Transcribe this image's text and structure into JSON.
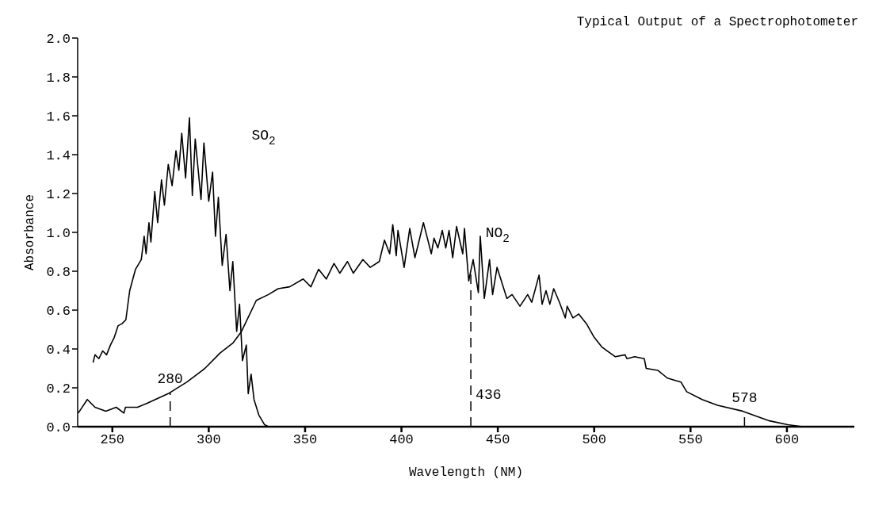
{
  "chart_data": {
    "type": "line",
    "title": "Typical Output of a Spectrophotometer",
    "xlabel": "Wavelength (NM)",
    "ylabel": "Absorbance",
    "xlim": [
      232,
      635
    ],
    "xticks": [
      250,
      300,
      350,
      400,
      450,
      500,
      550,
      600
    ],
    "ylim": [
      0,
      2
    ],
    "yticks": [
      {
        "value": 0,
        "label": "0.0"
      },
      {
        "value": 0.2,
        "label": "0.2"
      },
      {
        "value": 0.4,
        "label": "0.4"
      },
      {
        "value": 0.6,
        "label": "0.6"
      },
      {
        "value": 0.8,
        "label": "0.8"
      },
      {
        "value": 1,
        "label": "1.0"
      },
      {
        "value": 1.2,
        "label": "1.2"
      },
      {
        "value": 1.4,
        "label": "1.4"
      },
      {
        "value": 1.6,
        "label": "1.6"
      },
      {
        "value": 1.8,
        "label": "1.8"
      },
      {
        "value": 2,
        "label": "2.0"
      }
    ],
    "grid": false,
    "legend": false,
    "marker": "none",
    "line_style": "solid",
    "series": [
      {
        "color": "#000000",
        "x": [
          240,
          241,
          243,
          245,
          247,
          249,
          251,
          253,
          255,
          257,
          259,
          262,
          265,
          266.5,
          267.5,
          269,
          270,
          272,
          273.5,
          275.5,
          277,
          279,
          281,
          283,
          284.5,
          286,
          288,
          290,
          291.5,
          293,
          296,
          297.5,
          300,
          302,
          303.5,
          305,
          307,
          309,
          311,
          312.5,
          314.5,
          316,
          317.5,
          319.5,
          320.5,
          322,
          323.5,
          326,
          329,
          331,
          335
        ],
        "values": [
          0.33,
          0.37,
          0.35,
          0.39,
          0.37,
          0.42,
          0.46,
          0.52,
          0.53,
          0.55,
          0.7,
          0.81,
          0.86,
          0.98,
          0.89,
          1.05,
          0.95,
          1.21,
          1.05,
          1.27,
          1.14,
          1.35,
          1.24,
          1.42,
          1.32,
          1.51,
          1.28,
          1.59,
          1.19,
          1.48,
          1.17,
          1.46,
          1.16,
          1.31,
          0.98,
          1.18,
          0.83,
          0.99,
          0.7,
          0.85,
          0.49,
          0.63,
          0.34,
          0.42,
          0.17,
          0.27,
          0.14,
          0.06,
          0.01,
          0,
          0
        ]
      },
      {
        "color": "#000000",
        "x": [
          232.3,
          237,
          241,
          246.6,
          252,
          256,
          256.8,
          263,
          268,
          279,
          288.7,
          298,
          306,
          312.5,
          317,
          324.7,
          331,
          336,
          342,
          349,
          353,
          357,
          361,
          365,
          368,
          372,
          375,
          380,
          383.8,
          388.5,
          391.2,
          393.9,
          395.5,
          397.3,
          398.2,
          401.4,
          404.3,
          407,
          409,
          411.4,
          413.2,
          415.5,
          416.9,
          418.9,
          421.2,
          423,
          424.7,
          426.6,
          428.6,
          431.8,
          432.7,
          434.9,
          437.2,
          439.9,
          440.9,
          443,
          445.7,
          447.3,
          449.6,
          454.7,
          457.4,
          461.5,
          465.5,
          467.6,
          471.4,
          473,
          475,
          477,
          479,
          482,
          485,
          486,
          489,
          492,
          496,
          500,
          504,
          511,
          516,
          517,
          521,
          526,
          527,
          533,
          538,
          545,
          548,
          556,
          564,
          577,
          591,
          600.5,
          608
        ],
        "values": [
          0.07,
          0.14,
          0.1,
          0.08,
          0.1,
          0.07,
          0.1,
          0.1,
          0.12,
          0.17,
          0.23,
          0.3,
          0.38,
          0.43,
          0.49,
          0.65,
          0.68,
          0.71,
          0.72,
          0.76,
          0.72,
          0.81,
          0.76,
          0.84,
          0.79,
          0.85,
          0.79,
          0.86,
          0.82,
          0.85,
          0.96,
          0.89,
          1.04,
          0.88,
          1.01,
          0.82,
          1.02,
          0.87,
          0.95,
          1.05,
          0.98,
          0.89,
          0.97,
          0.92,
          1.01,
          0.92,
          1.01,
          0.87,
          1.03,
          0.89,
          1.02,
          0.75,
          0.86,
          0.69,
          0.98,
          0.66,
          0.86,
          0.68,
          0.82,
          0.66,
          0.68,
          0.62,
          0.68,
          0.64,
          0.78,
          0.63,
          0.7,
          0.63,
          0.71,
          0.64,
          0.56,
          0.62,
          0.56,
          0.58,
          0.53,
          0.46,
          0.41,
          0.36,
          0.37,
          0.35,
          0.36,
          0.35,
          0.3,
          0.29,
          0.25,
          0.23,
          0.18,
          0.14,
          0.11,
          0.08,
          0.03,
          0.01,
          0
        ]
      }
    ],
    "ref_lines": [
      {
        "axis": "x",
        "value": 280,
        "label": "280",
        "line_style": "dashed",
        "color": "#000000"
      },
      {
        "axis": "x",
        "value": 436,
        "label": "436",
        "line_style": "dashed",
        "color": "#000000"
      },
      {
        "axis": "x",
        "value": 578,
        "label": "578",
        "line_style": "dashed",
        "color": "#000000"
      }
    ],
    "annotations": [
      "SO$_{2}$",
      "NO$_{2}$"
    ]
  }
}
